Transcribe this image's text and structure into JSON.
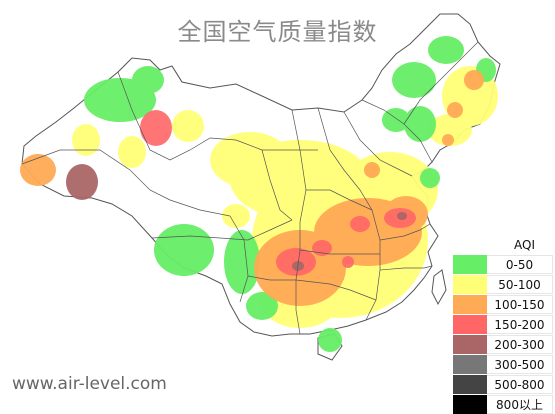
{
  "title": "全国空气质量指数",
  "watermark": "www.air-level.com",
  "colors": {
    "good": "#66ee66",
    "moderate": "#ffff77",
    "usg": "#ffaa55",
    "unhealthy": "#ff6666",
    "very_unhealthy": "#aa6666",
    "hazardous1": "#777777",
    "hazardous2": "#444444",
    "hazardous3": "#000000",
    "border": "#555555"
  },
  "legend": {
    "title": "AQI",
    "items": [
      {
        "label": "0-50",
        "color": "#66ee66"
      },
      {
        "label": "50-100",
        "color": "#ffff77"
      },
      {
        "label": "100-150",
        "color": "#ffaa55"
      },
      {
        "label": "150-200",
        "color": "#ff6666"
      },
      {
        "label": "200-300",
        "color": "#aa6666"
      },
      {
        "label": "300-500",
        "color": "#777777"
      },
      {
        "label": "500-800",
        "color": "#444444"
      },
      {
        "label": "800以上",
        "color": "#000000"
      }
    ]
  }
}
